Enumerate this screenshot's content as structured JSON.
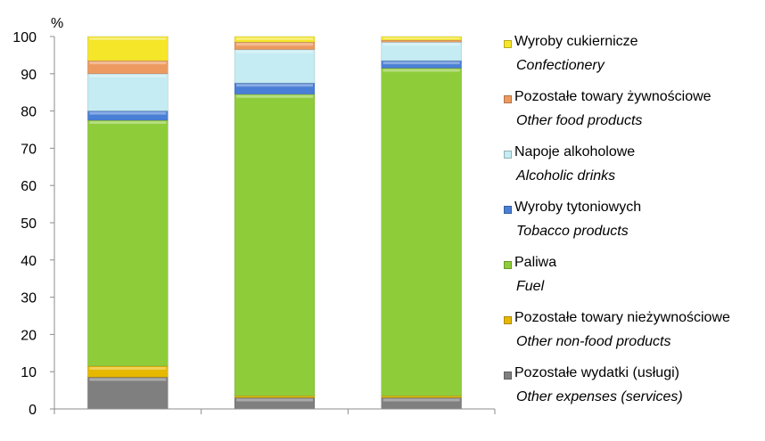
{
  "chart_data": {
    "type": "bar",
    "stacked": true,
    "ylabel": "%",
    "ylim": [
      0,
      100
    ],
    "yticks": [
      "0",
      "10",
      "20",
      "30",
      "40",
      "50",
      "60",
      "70",
      "80",
      "90",
      "100"
    ],
    "categories": [
      "",
      "",
      ""
    ],
    "series": [
      {
        "name": "Pozostałe wydatki (usługi)",
        "name_en": "Other expenses (services)",
        "color": "#7f7f7f",
        "values": [
          8.5,
          3.0,
          3.0
        ]
      },
      {
        "name": "Pozostałe towary nieżywnościowe",
        "name_en": "Other non-food products",
        "color": "#e6b800",
        "values": [
          3.0,
          0.5,
          0.5
        ]
      },
      {
        "name": "Paliwa",
        "name_en": "Fuel",
        "color": "#8fcc3a",
        "values": [
          66.0,
          81.0,
          88.0
        ]
      },
      {
        "name": "Wyroby tytoniowych",
        "name_en": "Tobacco products",
        "color": "#4a7fd6",
        "values": [
          2.5,
          3.0,
          2.0
        ]
      },
      {
        "name": "Napoje alkoholowe",
        "name_en": "Alcoholic drinks",
        "color": "#c4ecf2",
        "values": [
          10.0,
          9.0,
          5.0
        ]
      },
      {
        "name": "Pozostałe towary żywnościowe",
        "name_en": "Other food products",
        "color": "#ec9a60",
        "values": [
          3.5,
          2.0,
          0.5
        ]
      },
      {
        "name": "Wyroby cukiernicze",
        "name_en": "Confectionery",
        "color": "#f5e62a",
        "values": [
          6.5,
          1.5,
          1.0
        ]
      }
    ],
    "legend_position": "right",
    "grid": false
  }
}
